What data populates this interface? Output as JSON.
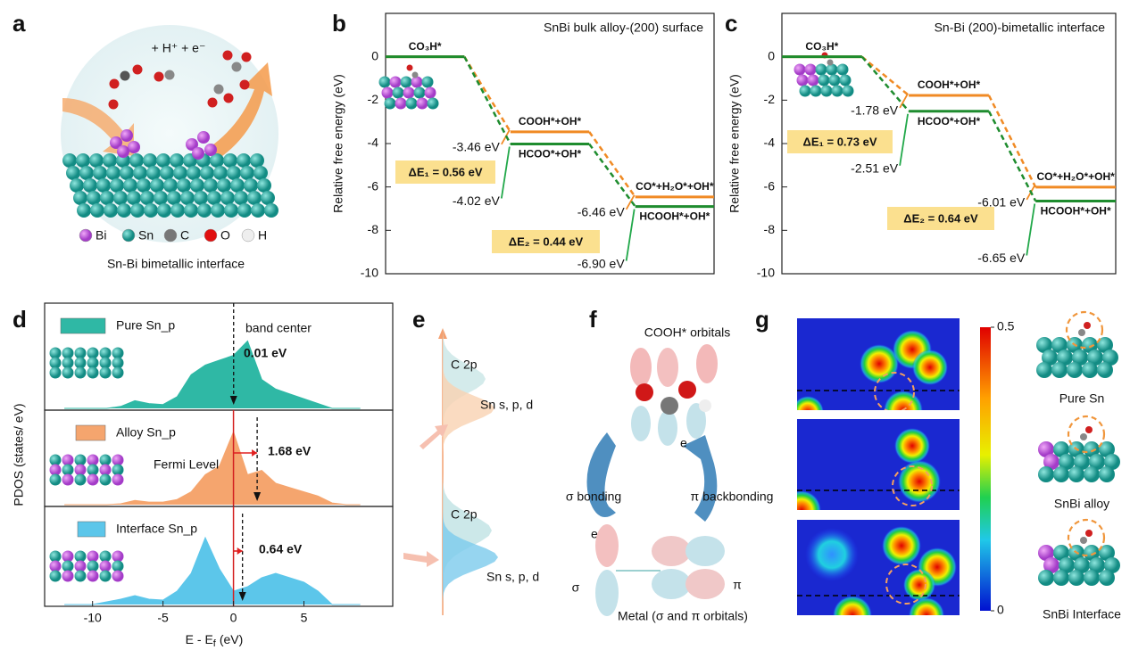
{
  "panel_labels": [
    "a",
    "b",
    "c",
    "d",
    "e",
    "f",
    "g"
  ],
  "panel_a": {
    "reaction": "+ H⁺ + e⁻",
    "legend": [
      "Bi",
      "Sn",
      "C",
      "O",
      "H"
    ],
    "caption": "Sn-Bi bimetallic interface"
  },
  "chart_data": [
    {
      "type": "energy-diagram",
      "title": "SnBi bulk alloy-(200) surface",
      "ylabel": "Relative free energy (eV)",
      "ylim": [
        -10,
        2
      ],
      "yticks": [
        0,
        -2,
        -4,
        -6,
        -8,
        -10
      ],
      "series": [
        {
          "color": "#f08a24",
          "values": [
            0,
            -3.46,
            -6.46
          ],
          "state_labels": [
            null,
            "COOH*+OH*",
            "CO*+H₂O*+OH*"
          ],
          "value_labels": [
            null,
            "-3.46 eV",
            "-6.46 eV"
          ]
        },
        {
          "color": "#1e8c2e",
          "values": [
            0,
            -4.02,
            -6.9
          ],
          "state_labels": [
            "CO₃H*",
            "HCOO*+OH*",
            "HCOOH*+OH*"
          ],
          "value_labels": [
            null,
            "-4.02 eV",
            "-6.90 eV"
          ]
        }
      ],
      "annotations": [
        "ΔE₁ = 0.56 eV",
        "ΔE₂ = 0.44 eV"
      ]
    },
    {
      "type": "energy-diagram",
      "title": "Sn-Bi (200)-bimetallic interface",
      "ylabel": "Relative free energy (eV)",
      "ylim": [
        -10,
        2
      ],
      "yticks": [
        0,
        -2,
        -4,
        -6,
        -8,
        -10
      ],
      "series": [
        {
          "color": "#f08a24",
          "values": [
            0,
            -1.78,
            -6.01
          ],
          "state_labels": [
            null,
            "COOH*+OH*",
            "CO*+H₂O*+OH*"
          ],
          "value_labels": [
            null,
            "-1.78 eV",
            "-6.01 eV"
          ]
        },
        {
          "color": "#1e8c2e",
          "values": [
            0,
            -2.51,
            -6.65
          ],
          "state_labels": [
            "CO₃H*",
            "HCOO*+OH*",
            "HCOOH*+OH*"
          ],
          "value_labels": [
            null,
            "-2.51 eV",
            "-6.65 eV"
          ]
        }
      ],
      "annotations": [
        "ΔE₁ = 0.73 eV",
        "ΔE₂ = 0.64 eV"
      ]
    },
    {
      "type": "area",
      "ylabel": "PDOS (states/ eV)",
      "xlabel": "E - E",
      "xlabel_sub": "f",
      "xlabel_unit": "(eV)",
      "xlim": [
        -13.4,
        11.3
      ],
      "xticks": [
        -10,
        -5,
        0,
        5
      ],
      "ylim": [
        0,
        1
      ],
      "x": [
        -12,
        -11,
        -10,
        -9,
        -8,
        -7,
        -6,
        -5,
        -4,
        -3,
        -2,
        -1,
        0,
        1,
        2,
        3,
        4,
        5,
        6,
        7,
        8,
        9
      ],
      "series": [
        {
          "name": "Pure Sn_p",
          "color": "#2fb8a5",
          "values": [
            0,
            0,
            0,
            0,
            0.02,
            0.08,
            0.05,
            0.04,
            0.12,
            0.35,
            0.45,
            0.5,
            0.55,
            0.7,
            0.3,
            0.2,
            0.15,
            0.1,
            0.05,
            0,
            0,
            0
          ],
          "band_center": 0.01,
          "band_center_label": "0.01 eV"
        },
        {
          "name": "Alloy Sn_p",
          "color": "#f5a56e",
          "values": [
            0,
            0,
            0,
            0,
            0.01,
            0.05,
            0.03,
            0.03,
            0.06,
            0.15,
            0.35,
            0.45,
            0.85,
            0.35,
            0.4,
            0.25,
            0.2,
            0.15,
            0.1,
            0.02,
            0,
            0
          ],
          "band_center": 1.68,
          "band_center_label": "1.68 eV"
        },
        {
          "name": "Interface Sn_p",
          "color": "#5cc6ea",
          "values": [
            0,
            0,
            0,
            0.03,
            0.06,
            0.1,
            0.06,
            0.05,
            0.15,
            0.35,
            0.75,
            0.4,
            0.15,
            0.2,
            0.3,
            0.35,
            0.3,
            0.25,
            0.15,
            0,
            0,
            0
          ],
          "band_center": 0.64,
          "band_center_label": "0.64 eV"
        }
      ],
      "annotations": [
        "band center",
        "Fermi Level"
      ]
    }
  ],
  "panel_e": {
    "top": [
      "C 2p",
      "Sn s, p, d"
    ],
    "bottom": [
      "C 2p",
      "Sn s, p, d"
    ]
  },
  "panel_f": {
    "title": "COOH* orbitals",
    "sigma_bonding": "σ bonding",
    "pi_backbonding": "π backbonding",
    "electron_labels": [
      "e",
      "e"
    ],
    "sigma": "σ",
    "pi": "π",
    "caption": "Metal (σ and π orbitals)"
  },
  "panel_g": {
    "colorbar": {
      "lim": [
        0,
        0.5
      ],
      "ticks": [
        0.5,
        0
      ]
    },
    "labels": [
      "Pure Sn",
      "SnBi alloy",
      "SnBi Interface"
    ]
  }
}
